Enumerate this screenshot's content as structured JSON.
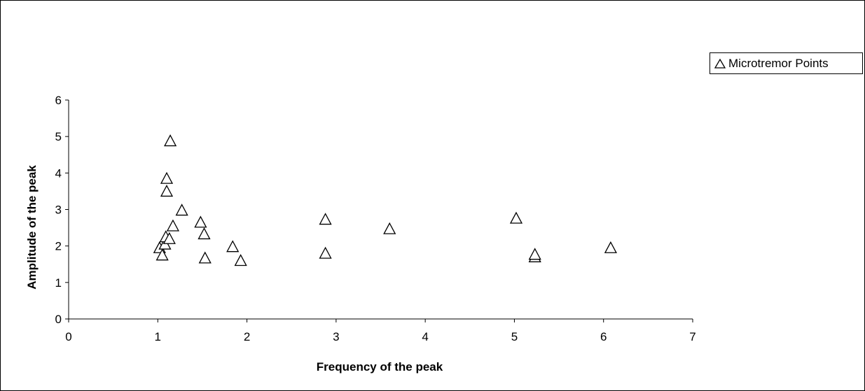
{
  "chart_data": {
    "type": "scatter",
    "title": "",
    "xlabel": "Frequency of the peak",
    "ylabel": "Amplitude of the peak",
    "xlim": [
      0,
      7
    ],
    "ylim": [
      0,
      6
    ],
    "xticks": [
      "0",
      "1",
      "2",
      "3",
      "4",
      "5",
      "6",
      "7"
    ],
    "yticks": [
      "0",
      "1",
      "2",
      "3",
      "4",
      "5",
      "6"
    ],
    "grid": false,
    "legend_position": "top-right",
    "series": [
      {
        "name": "Microtremor Points",
        "marker": "open-triangle",
        "color": "#000000",
        "points": [
          {
            "x": 1.02,
            "y": 1.95
          },
          {
            "x": 1.05,
            "y": 1.75
          },
          {
            "x": 1.08,
            "y": 2.05
          },
          {
            "x": 1.09,
            "y": 2.25
          },
          {
            "x": 1.1,
            "y": 3.5
          },
          {
            "x": 1.1,
            "y": 3.85
          },
          {
            "x": 1.13,
            "y": 2.2
          },
          {
            "x": 1.14,
            "y": 4.88
          },
          {
            "x": 1.17,
            "y": 2.55
          },
          {
            "x": 1.27,
            "y": 2.98
          },
          {
            "x": 1.48,
            "y": 2.65
          },
          {
            "x": 1.52,
            "y": 2.33
          },
          {
            "x": 1.53,
            "y": 1.67
          },
          {
            "x": 1.84,
            "y": 1.98
          },
          {
            "x": 1.93,
            "y": 1.6
          },
          {
            "x": 2.88,
            "y": 2.73
          },
          {
            "x": 2.88,
            "y": 1.8
          },
          {
            "x": 3.6,
            "y": 2.47
          },
          {
            "x": 5.02,
            "y": 2.76
          },
          {
            "x": 5.23,
            "y": 1.7
          },
          {
            "x": 5.23,
            "y": 1.77
          },
          {
            "x": 6.08,
            "y": 1.95
          }
        ]
      }
    ]
  }
}
